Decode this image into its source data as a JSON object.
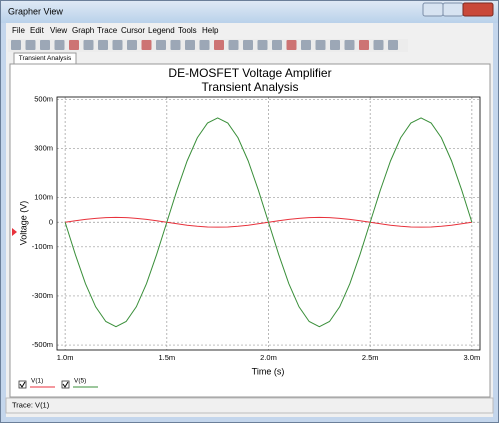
{
  "window": {
    "title": "Grapher View",
    "menu": [
      "File",
      "Edit",
      "View",
      "Graph",
      "Trace",
      "Cursor",
      "Legend",
      "Tools",
      "Help"
    ],
    "tab": "Transient Analysis",
    "status": "Trace: V(1)"
  },
  "chart_data": {
    "type": "line",
    "title": "DE-MOSFET Voltage Amplifier",
    "subtitle": "Transient Analysis",
    "x_label": "Time (s)",
    "y_label": "Voltage (V)",
    "x": [
      0.001,
      0.00105,
      0.0011,
      0.00115,
      0.0012,
      0.00125,
      0.0013,
      0.00135,
      0.0014,
      0.00145,
      0.0015,
      0.00155,
      0.0016,
      0.00165,
      0.0017,
      0.00175,
      0.0018,
      0.00185,
      0.0019,
      0.00195,
      0.002,
      0.00205,
      0.0021,
      0.00215,
      0.0022,
      0.00225,
      0.0023,
      0.00235,
      0.0024,
      0.00245,
      0.0025,
      0.00255,
      0.0026,
      0.00265,
      0.0027,
      0.00275,
      0.0028,
      0.00285,
      0.0029,
      0.00295,
      0.003
    ],
    "series": [
      {
        "name": "V(1)",
        "color": "#e8323c",
        "values": [
          0,
          0.006,
          0.012,
          0.016,
          0.019,
          0.02,
          0.019,
          0.016,
          0.012,
          0.006,
          0,
          -0.006,
          -0.012,
          -0.016,
          -0.019,
          -0.02,
          -0.019,
          -0.016,
          -0.012,
          -0.006,
          0,
          0.006,
          0.012,
          0.016,
          0.019,
          0.02,
          0.019,
          0.016,
          0.012,
          0.006,
          0,
          -0.006,
          -0.012,
          -0.016,
          -0.019,
          -0.02,
          -0.019,
          -0.016,
          -0.012,
          -0.006,
          0
        ]
      },
      {
        "name": "V(5)",
        "color": "#3a8f3a",
        "values": [
          0,
          -0.131,
          -0.25,
          -0.344,
          -0.404,
          -0.425,
          -0.404,
          -0.344,
          -0.25,
          -0.131,
          0,
          0.131,
          0.25,
          0.344,
          0.404,
          0.425,
          0.404,
          0.344,
          0.25,
          0.131,
          0,
          -0.131,
          -0.25,
          -0.344,
          -0.404,
          -0.425,
          -0.404,
          -0.344,
          -0.25,
          -0.131,
          0,
          0.131,
          0.25,
          0.344,
          0.404,
          0.425,
          0.404,
          0.344,
          0.25,
          0.131,
          0
        ]
      }
    ],
    "xlim": [
      0.00096,
      0.00304
    ],
    "xticks": [
      {
        "value": 0.001,
        "label": "1.0m"
      },
      {
        "value": 0.0015,
        "label": "1.5m"
      },
      {
        "value": 0.002,
        "label": "2.0m"
      },
      {
        "value": 0.0025,
        "label": "2.5m"
      },
      {
        "value": 0.003,
        "label": "3.0m"
      }
    ],
    "ylim": [
      -0.52,
      0.51
    ],
    "yticks": [
      {
        "value": -0.5,
        "label": "-500m"
      },
      {
        "value": -0.3,
        "label": "-300m"
      },
      {
        "value": -0.1,
        "label": "-100m"
      },
      0,
      {
        "value": 0.1,
        "label": "100m"
      },
      {
        "value": 0.3,
        "label": "300m"
      },
      {
        "value": 0.5,
        "label": "500m"
      }
    ],
    "grid": true
  }
}
